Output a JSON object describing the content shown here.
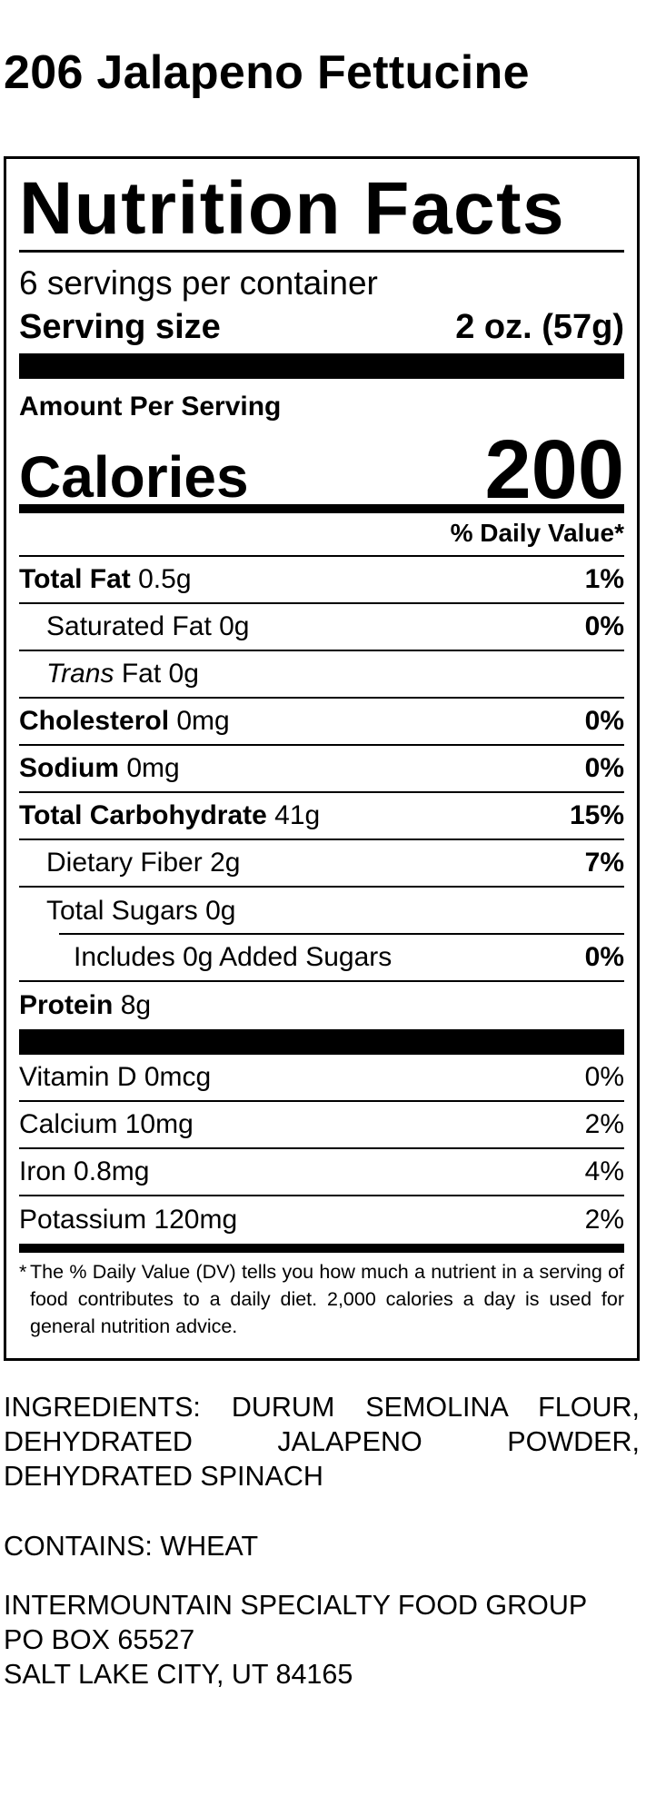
{
  "product": {
    "title": "206 Jalapeno Fettucine"
  },
  "label": {
    "title": "Nutrition Facts",
    "servings_per_container": "6 servings per container",
    "serving_size_label": "Serving size",
    "serving_size_value": "2 oz. (57g)",
    "amount_per_serving": "Amount Per Serving",
    "calories_label": "Calories",
    "calories_value": "200",
    "dv_header": "% Daily Value*",
    "nutrients": [
      {
        "name": "Total Fat",
        "amount": "0.5g",
        "dv": "1%"
      },
      {
        "name": "Saturated Fat",
        "amount": "0g",
        "dv": "0%"
      },
      {
        "name": "Trans",
        "name_suffix": "Fat",
        "amount": "0g",
        "dv": ""
      },
      {
        "name": "Cholesterol",
        "amount": "0mg",
        "dv": "0%"
      },
      {
        "name": "Sodium",
        "amount": "0mg",
        "dv": "0%"
      },
      {
        "name": "Total Carbohydrate",
        "amount": "41g",
        "dv": "15%"
      },
      {
        "name": "Dietary Fiber",
        "amount": "2g",
        "dv": "7%"
      },
      {
        "name": "Total Sugars",
        "amount": "0g",
        "dv": ""
      },
      {
        "name": "Includes 0g Added Sugars",
        "amount": "",
        "dv": "0%"
      },
      {
        "name": "Protein",
        "amount": "8g",
        "dv": ""
      }
    ],
    "vitamins": [
      {
        "name": "Vitamin D",
        "amount": "0mcg",
        "dv": "0%"
      },
      {
        "name": "Calcium",
        "amount": "10mg",
        "dv": "2%"
      },
      {
        "name": "Iron",
        "amount": "0.8mg",
        "dv": "4%"
      },
      {
        "name": "Potassium",
        "amount": "120mg",
        "dv": "2%"
      }
    ],
    "footnote_star": "*",
    "footnote": "The % Daily Value (DV) tells you how much a nutrient in a serving of food contributes to a daily diet. 2,000 calories a day is used for general nutrition advice."
  },
  "ingredients": "INGREDIENTS: DURUM SEMOLINA FLOUR, DEHYDRATED JALAPENO POWDER, DEHYDRATED SPINACH",
  "contains": "CONTAINS: WHEAT",
  "address": {
    "line1": "INTERMOUNTAIN SPECIALTY FOOD GROUP",
    "line2": "PO BOX 65527",
    "line3": "SALT LAKE CITY, UT 84165"
  }
}
